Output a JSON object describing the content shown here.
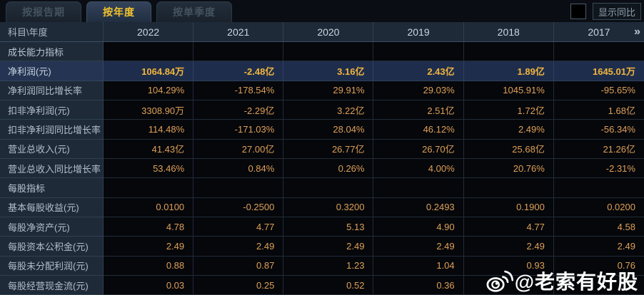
{
  "tabs": [
    {
      "label": "按报告期",
      "active": false
    },
    {
      "label": "按年度",
      "active": true
    },
    {
      "label": "按单季度",
      "active": false
    }
  ],
  "controls": {
    "compare_label": "显示同比",
    "checkbox_checked": false
  },
  "table": {
    "corner_label": "科目\\年度",
    "years": [
      "2022",
      "2021",
      "2020",
      "2019",
      "2018",
      "2017"
    ],
    "more_icon": "»",
    "rows": [
      {
        "type": "section",
        "label": "成长能力指标",
        "values": [
          "",
          "",
          "",
          "",
          "",
          ""
        ]
      },
      {
        "type": "highlight",
        "label": "净利润(元)",
        "values": [
          "1064.84万",
          "-2.48亿",
          "3.16亿",
          "2.43亿",
          "1.89亿",
          "1645.01万"
        ]
      },
      {
        "type": "data",
        "label": "净利润同比增长率",
        "values": [
          "104.29%",
          "-178.54%",
          "29.91%",
          "29.03%",
          "1045.91%",
          "-95.65%"
        ]
      },
      {
        "type": "data",
        "label": "扣非净利润(元)",
        "values": [
          "3308.90万",
          "-2.29亿",
          "3.22亿",
          "2.51亿",
          "1.72亿",
          "1.68亿"
        ]
      },
      {
        "type": "data",
        "label": "扣非净利润同比增长率",
        "values": [
          "114.48%",
          "-171.03%",
          "28.04%",
          "46.12%",
          "2.49%",
          "-56.34%"
        ]
      },
      {
        "type": "data",
        "label": "营业总收入(元)",
        "values": [
          "41.43亿",
          "27.00亿",
          "26.77亿",
          "26.70亿",
          "25.68亿",
          "21.26亿"
        ]
      },
      {
        "type": "data",
        "label": "营业总收入同比增长率",
        "values": [
          "53.46%",
          "0.84%",
          "0.26%",
          "4.00%",
          "20.76%",
          "-2.31%"
        ]
      },
      {
        "type": "section",
        "label": "每股指标",
        "values": [
          "",
          "",
          "",
          "",
          "",
          ""
        ]
      },
      {
        "type": "data",
        "label": "基本每股收益(元)",
        "values": [
          "0.0100",
          "-0.2500",
          "0.3200",
          "0.2493",
          "0.1900",
          "0.0200"
        ]
      },
      {
        "type": "data",
        "label": "每股净资产(元)",
        "values": [
          "4.78",
          "4.77",
          "5.13",
          "4.90",
          "4.77",
          "4.58"
        ]
      },
      {
        "type": "data",
        "label": "每股资本公积金(元)",
        "values": [
          "2.49",
          "2.49",
          "2.49",
          "2.49",
          "2.49",
          "2.49"
        ]
      },
      {
        "type": "data",
        "label": "每股未分配利润(元)",
        "values": [
          "0.88",
          "0.87",
          "1.23",
          "1.04",
          "0.93",
          "0.76"
        ]
      },
      {
        "type": "data",
        "label": "每股经营现金流(元)",
        "values": [
          "0.03",
          "0.25",
          "0.52",
          "0.36",
          "",
          ""
        ]
      }
    ]
  },
  "watermark": {
    "text": "@老索有好股",
    "icon": "weibo-icon"
  },
  "colors": {
    "panel_header_bg": "#1e2a38",
    "data_bg": "#05070b",
    "highlight_row_bg": "#1e2d4c",
    "value_gold": "#dfa057",
    "highlight_gold": "#f2b53d",
    "active_tab_text": "#f3c32f",
    "grid_line": "#465a6e"
  }
}
